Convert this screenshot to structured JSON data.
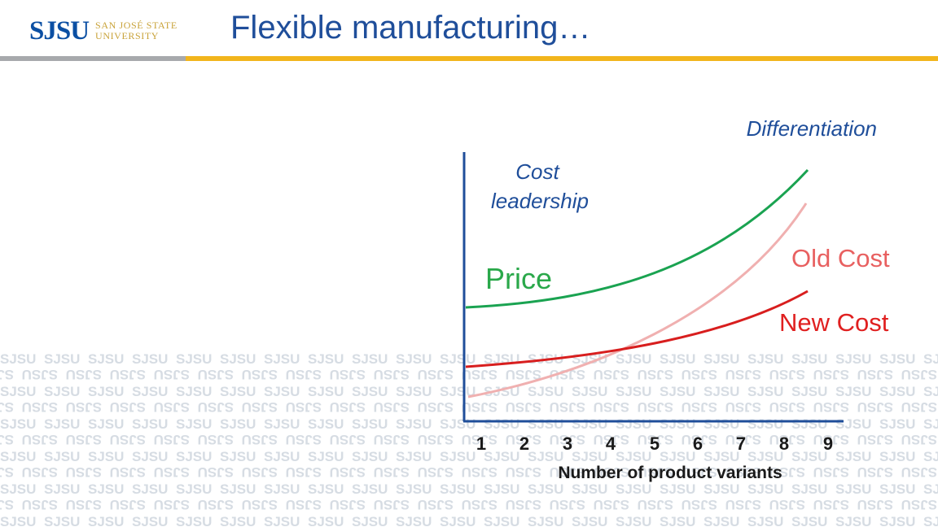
{
  "header": {
    "logo_mark": "SJSU",
    "logo_line1": "SAN JOSÉ STATE",
    "logo_line2": "UNIVERSITY",
    "title": "Flexible manufacturing…"
  },
  "diagram": {
    "label_differentiation": "Differentiation",
    "label_cost_leadership_1": "Cost",
    "label_cost_leadership_2": "leadership",
    "label_price": "Price",
    "label_old_cost": "Old Cost",
    "label_new_cost": "New Cost",
    "x_axis_label": "Number of product variants",
    "x_ticks": [
      "1",
      "2",
      "3",
      "4",
      "5",
      "6",
      "7",
      "8",
      "9"
    ],
    "colors": {
      "axis": "#1f4e9a",
      "price": "#1aa351",
      "old_cost": "#f0b0b0",
      "new_cost": "#d81e1e",
      "price_label": "#2aa84a",
      "cost_label": "#e02020",
      "old_cost_label": "#e86060",
      "annotation": "#1f4e9a"
    }
  },
  "watermark": {
    "text": "SJSU"
  }
}
